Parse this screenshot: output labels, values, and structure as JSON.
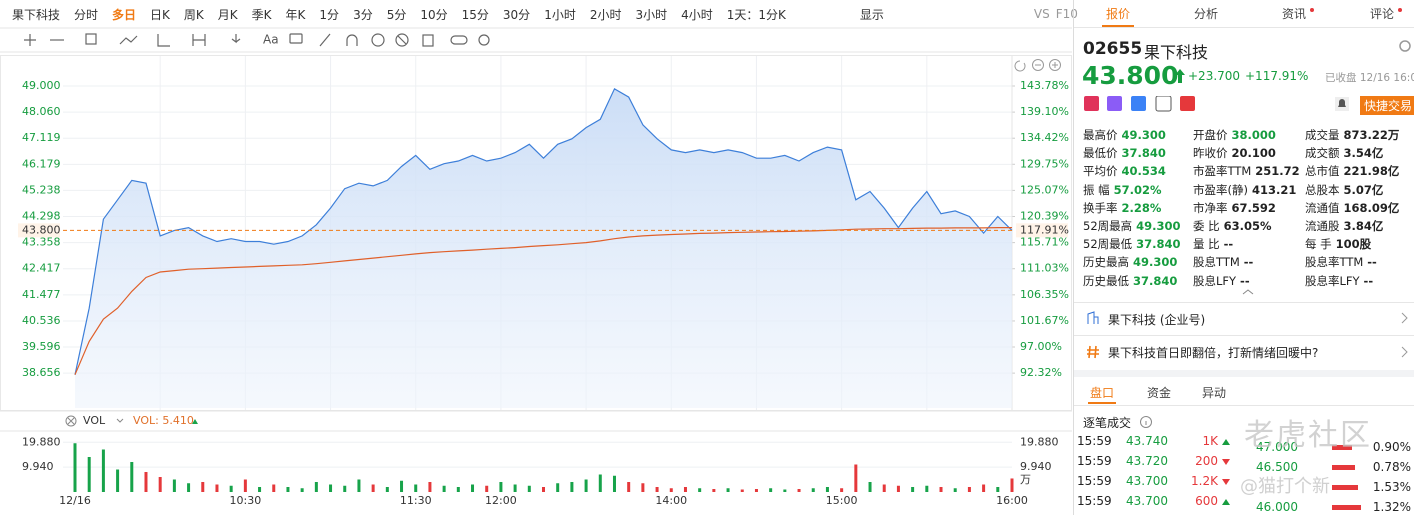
{
  "toolbar": {
    "symbol": "果下科技",
    "periods": [
      "分时",
      "多日",
      "日K",
      "周K",
      "月K",
      "季K",
      "年K",
      "1分",
      "3分",
      "5分",
      "10分",
      "15分",
      "30分",
      "1小时",
      "2小时",
      "3小时",
      "4小时"
    ],
    "selected": 1,
    "interval": "1天：1分K",
    "display": "显示",
    "vs": "VS",
    "f10": "F10"
  },
  "drawing_toolbar": {
    "text_tool": "Aa"
  },
  "chart_data": [
    {
      "type": "line",
      "categories": [
        "12/16",
        null,
        null,
        null,
        null,
        null,
        null,
        null,
        null,
        null,
        null,
        null,
        "10:30",
        null,
        null,
        null,
        null,
        null,
        null,
        null,
        null,
        null,
        null,
        null,
        "11:30",
        null,
        null,
        null,
        null,
        null,
        "12:00",
        null,
        null,
        null,
        null,
        null,
        null,
        null,
        null,
        null,
        null,
        null,
        "14:00",
        null,
        null,
        null,
        null,
        null,
        null,
        null,
        null,
        null,
        null,
        null,
        "15:00",
        null,
        null,
        null,
        null,
        null,
        null,
        null,
        null,
        null,
        null,
        null,
        "16:00"
      ],
      "series": [
        {
          "color": "#3d7fd9",
          "fill": true,
          "values": [
            38.6,
            41.0,
            44.2,
            44.9,
            45.6,
            45.5,
            43.6,
            43.8,
            43.9,
            43.6,
            43.4,
            43.5,
            43.4,
            43.4,
            43.3,
            43.4,
            43.6,
            44.0,
            44.6,
            45.3,
            45.5,
            45.4,
            45.6,
            46.1,
            46.5,
            46.0,
            46.2,
            46.3,
            46.5,
            46.3,
            46.4,
            46.6,
            46.9,
            46.4,
            46.9,
            47.1,
            47.5,
            47.8,
            48.9,
            48.6,
            47.6,
            47.1,
            46.7,
            46.6,
            46.7,
            46.6,
            46.7,
            46.6,
            46.4,
            46.4,
            46.5,
            46.3,
            46.6,
            46.8,
            46.7,
            44.9,
            45.2,
            44.6,
            43.9,
            44.6,
            45.2,
            44.4,
            44.5,
            44.3,
            43.7,
            44.3,
            43.8
          ]
        },
        {
          "color": "#e0602a",
          "fill": false,
          "values": [
            38.6,
            39.8,
            40.6,
            41.0,
            41.6,
            42.1,
            42.3,
            42.35,
            42.4,
            42.42,
            42.44,
            42.46,
            42.48,
            42.5,
            42.52,
            42.54,
            42.56,
            42.6,
            42.65,
            42.7,
            42.75,
            42.8,
            42.85,
            42.9,
            42.95,
            43.0,
            43.03,
            43.06,
            43.09,
            43.12,
            43.15,
            43.18,
            43.22,
            43.25,
            43.28,
            43.32,
            43.36,
            43.42,
            43.5,
            43.56,
            43.6,
            43.63,
            43.65,
            43.67,
            43.69,
            43.7,
            43.72,
            43.73,
            43.74,
            43.75,
            43.76,
            43.77,
            43.78,
            43.8,
            43.82,
            43.84,
            43.85,
            43.86,
            43.86,
            43.87,
            43.88,
            43.88,
            43.89,
            43.89,
            43.89,
            43.9,
            43.9
          ]
        }
      ],
      "ylim": [
        37.4,
        49.865
      ],
      "yticks": [
        {
          "value": 49,
          "label": "49.000"
        },
        {
          "value": 48.06,
          "label": "48.060"
        },
        47.119,
        46.179,
        45.238,
        44.298,
        43.358,
        42.417,
        41.477,
        40.536,
        39.596,
        38.656
      ],
      "y2lim": [
        86.07,
        148.08
      ],
      "y2ticks": [
        {
          "value": 143.78,
          "label": "143.78%"
        },
        {
          "value": 139.1,
          "label": "139.10%"
        },
        {
          "value": 134.42,
          "label": "134.42%"
        },
        {
          "value": 129.75,
          "label": "129.75%"
        },
        {
          "value": 125.07,
          "label": "125.07%"
        },
        {
          "value": 120.39,
          "label": "120.39%"
        },
        {
          "value": 115.71,
          "label": "115.71%"
        },
        {
          "value": 111.03,
          "label": "111.03%"
        },
        {
          "value": 106.35,
          "label": "106.35%"
        },
        {
          "value": 101.67,
          "label": "101.67%"
        },
        {
          "value": 97,
          "label": "97.00%"
        },
        {
          "value": 92.32,
          "label": "92.32%"
        }
      ],
      "reference_line": {
        "value": 43.8,
        "label": "43.800",
        "y2": {
          "value": 117.91,
          "label": "117.91%"
        }
      },
      "grid": true
    },
    {
      "type": "bar",
      "title": "VOL",
      "indicator_label": "VOL: 5.410",
      "unit": "万",
      "up_color": "#17a34a",
      "down_color": "#e5383b",
      "values": [
        19.5,
        14,
        17,
        9,
        12,
        8,
        6,
        5,
        3.5,
        4,
        3,
        2.5,
        5,
        2,
        3,
        2,
        1.5,
        4,
        3,
        2.5,
        5,
        3,
        2,
        4.5,
        3,
        4,
        2.5,
        2,
        3,
        2.5,
        4,
        3,
        2.5,
        2,
        3.5,
        4,
        5,
        7,
        6.5,
        4,
        3.5,
        2,
        1.5,
        2,
        1.5,
        1.2,
        1.5,
        1,
        1.2,
        1.5,
        1,
        1.2,
        1.5,
        2,
        1.5,
        11,
        4,
        3,
        2.5,
        2,
        2.5,
        2,
        1.5,
        2,
        3,
        2,
        5.41
      ],
      "ylim": [
        0,
        22
      ],
      "yticks": [
        {
          "value": 19.88,
          "label": "19.880"
        },
        {
          "value": 9.94,
          "label": "9.940"
        }
      ]
    }
  ],
  "quote": {
    "tabs": [
      "报价",
      "分析",
      "资讯",
      "评论"
    ],
    "selected_tab": 0,
    "code": "02655",
    "name": "果下科技",
    "price": "43.800",
    "change": "+23.700",
    "change_pct": "+117.91%",
    "status": "已收盘 12/16 16:0",
    "quick_trade": "快捷交易",
    "stats": [
      [
        [
          "最高价",
          "49.300"
        ],
        [
          "开盘价",
          "38.000"
        ],
        [
          "成交量",
          "873.22万"
        ]
      ],
      [
        [
          "最低价",
          "37.840"
        ],
        [
          "昨收价",
          "20.100"
        ],
        [
          "成交额",
          "3.54亿"
        ]
      ],
      [
        [
          "平均价",
          "40.534"
        ],
        [
          "市盈率TTM",
          "251.72"
        ],
        [
          "总市值",
          "221.98亿"
        ]
      ],
      [
        [
          "振 幅",
          "57.02%"
        ],
        [
          "市盈率(静)",
          "413.21"
        ],
        [
          "总股本",
          "5.07亿"
        ]
      ],
      [
        [
          "换手率",
          "2.28%"
        ],
        [
          "市净率",
          "67.592"
        ],
        [
          "流通值",
          "168.09亿"
        ]
      ],
      [
        [
          "52周最高",
          "49.300"
        ],
        [
          "委 比",
          "63.05%"
        ],
        [
          "流通股",
          "3.84亿"
        ]
      ],
      [
        [
          "52周最低",
          "37.840"
        ],
        [
          "量 比",
          "--"
        ],
        [
          "每 手",
          "100股"
        ]
      ],
      [
        [
          "历史最高",
          "49.300"
        ],
        [
          "股息TTM",
          "--"
        ],
        [
          "股息率TTM",
          "--"
        ]
      ],
      [
        [
          "历史最低",
          "37.840"
        ],
        [
          "股息LFY",
          "--"
        ],
        [
          "股息率LFY",
          "--"
        ]
      ]
    ],
    "company_account": "果下科技 (企业号)",
    "news": "果下科技首日即翻倍，打新情绪回暖中?",
    "book_tabs": [
      "盘口",
      "资金",
      "异动"
    ],
    "trades_title": "逐笔成交",
    "trades": [
      {
        "time": "15:59",
        "price": "43.740",
        "volume": "1K",
        "dir": "up"
      },
      {
        "time": "15:59",
        "price": "43.720",
        "volume": "200",
        "dir": "down"
      },
      {
        "time": "15:59",
        "price": "43.700",
        "volume": "1.2K",
        "dir": "down"
      },
      {
        "time": "15:59",
        "price": "43.700",
        "volume": "600",
        "dir": "up"
      }
    ],
    "levels": [
      {
        "price": "47.000",
        "pct": "0.90%"
      },
      {
        "price": "46.500",
        "pct": "0.78%"
      },
      {
        "pct": "1.53%"
      },
      {
        "price": "46.000",
        "pct": "1.32%"
      }
    ],
    "watermark": "老虎社区",
    "watermark_user": "@猫打个新"
  }
}
